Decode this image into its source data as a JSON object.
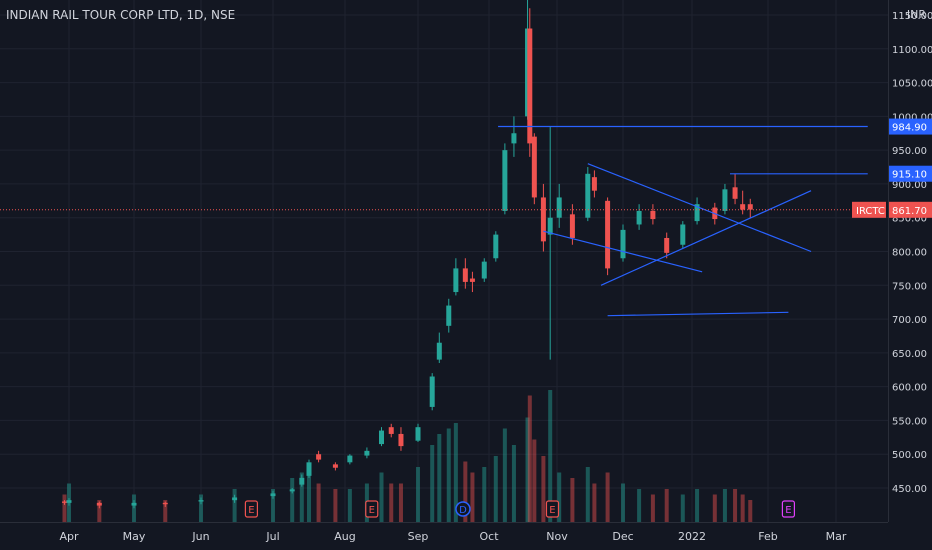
{
  "header": {
    "symbol_title": "INDIAN RAIL TOUR CORP LTD, 1D, NSE",
    "currency": "INR"
  },
  "colors": {
    "background": "#131722",
    "up": "#26a69a",
    "down": "#ef5350",
    "trendline": "#2962ff",
    "axis_text": "#d1d4dc"
  },
  "chart_data": {
    "type": "candlestick",
    "ylim": [
      400,
      1160
    ],
    "y_ticks": [
      "450.00",
      "500.00",
      "550.00",
      "600.00",
      "650.00",
      "700.00",
      "750.00",
      "800.00",
      "850.00",
      "900.00",
      "950.00",
      "1000.00",
      "1050.00",
      "1100.00",
      "1150.00"
    ],
    "x_ticks": [
      "Apr",
      "May",
      "Jun",
      "Jul",
      "Aug",
      "Sep",
      "Oct",
      "Nov",
      "Dec",
      "2022",
      "Feb",
      "Mar"
    ],
    "price_labels": [
      {
        "label": "984.90",
        "value": 984.9,
        "kind": "line"
      },
      {
        "label": "915.10",
        "value": 915.1,
        "kind": "line"
      },
      {
        "label": "861.70",
        "value": 861.7,
        "kind": "last",
        "ticker": "IRCTC"
      }
    ],
    "event_markers": [
      {
        "label": "E",
        "month": "Jun",
        "day": 22,
        "type": "earnings"
      },
      {
        "label": "E",
        "month": "Aug",
        "day": 12,
        "type": "earnings"
      },
      {
        "label": "D",
        "month": "Sep",
        "day": 20,
        "type": "dividend"
      },
      {
        "label": "E",
        "month": "Oct",
        "day": 29,
        "type": "earnings"
      },
      {
        "label": "E",
        "month": "Feb",
        "day": 10,
        "type": "earnings-upcoming"
      }
    ],
    "trendlines": [
      {
        "from": [
          "Oct",
          25,
          830
        ],
        "to": [
          "Jan",
          5,
          770
        ]
      },
      {
        "from": [
          "Nov",
          15,
          930
        ],
        "to": [
          "Feb",
          20,
          800
        ]
      },
      {
        "from": [
          "Nov",
          21,
          750
        ],
        "to": [
          "Feb",
          20,
          890
        ]
      },
      {
        "from": [
          "Nov",
          24,
          705
        ],
        "to": [
          "Feb",
          10,
          710
        ]
      },
      {
        "from": [
          "Oct",
          5,
          985
        ],
        "to": [
          "Mar",
          15,
          985
        ]
      },
      {
        "from": [
          "Jan",
          16,
          915
        ],
        "to": [
          "Mar",
          15,
          915
        ]
      }
    ],
    "candles": [
      {
        "month": "Mar",
        "day": 30,
        "o": 430,
        "h": 432,
        "l": 425,
        "c": 428,
        "v": 0.5
      },
      {
        "month": "Apr",
        "day": 1,
        "o": 428,
        "h": 435,
        "l": 424,
        "c": 432,
        "v": 0.7
      },
      {
        "month": "Apr",
        "day": 15,
        "o": 428,
        "h": 430,
        "l": 420,
        "c": 424,
        "v": 0.4
      },
      {
        "month": "May",
        "day": 1,
        "o": 424,
        "h": 432,
        "l": 420,
        "c": 428,
        "v": 0.5
      },
      {
        "month": "May",
        "day": 15,
        "o": 428,
        "h": 430,
        "l": 422,
        "c": 426,
        "v": 0.4
      },
      {
        "month": "Jun",
        "day": 1,
        "o": 430,
        "h": 436,
        "l": 426,
        "c": 432,
        "v": 0.5
      },
      {
        "month": "Jun",
        "day": 15,
        "o": 432,
        "h": 440,
        "l": 428,
        "c": 436,
        "v": 0.6
      },
      {
        "month": "Jul",
        "day": 1,
        "o": 438,
        "h": 446,
        "l": 434,
        "c": 442,
        "v": 0.6
      },
      {
        "month": "Jul",
        "day": 9,
        "o": 445,
        "h": 450,
        "l": 442,
        "c": 448,
        "v": 0.8
      },
      {
        "month": "Jul",
        "day": 13,
        "o": 455,
        "h": 470,
        "l": 452,
        "c": 465,
        "v": 0.9
      },
      {
        "month": "Jul",
        "day": 16,
        "o": 468,
        "h": 492,
        "l": 465,
        "c": 488,
        "v": 1.0
      },
      {
        "month": "Jul",
        "day": 20,
        "o": 500,
        "h": 505,
        "l": 488,
        "c": 492,
        "v": 0.7
      },
      {
        "month": "Jul",
        "day": 27,
        "o": 485,
        "h": 488,
        "l": 476,
        "c": 480,
        "v": 0.6
      },
      {
        "month": "Aug",
        "day": 3,
        "o": 488,
        "h": 500,
        "l": 485,
        "c": 498,
        "v": 0.6
      },
      {
        "month": "Aug",
        "day": 10,
        "o": 498,
        "h": 510,
        "l": 494,
        "c": 505,
        "v": 0.7
      },
      {
        "month": "Aug",
        "day": 16,
        "o": 515,
        "h": 540,
        "l": 512,
        "c": 535,
        "v": 0.9
      },
      {
        "month": "Aug",
        "day": 20,
        "o": 540,
        "h": 545,
        "l": 525,
        "c": 530,
        "v": 0.7
      },
      {
        "month": "Aug",
        "day": 24,
        "o": 530,
        "h": 540,
        "l": 505,
        "c": 512,
        "v": 0.7
      },
      {
        "month": "Sep",
        "day": 1,
        "o": 520,
        "h": 545,
        "l": 518,
        "c": 540,
        "v": 1.0
      },
      {
        "month": "Sep",
        "day": 7,
        "o": 570,
        "h": 620,
        "l": 565,
        "c": 615,
        "v": 1.4
      },
      {
        "month": "Sep",
        "day": 10,
        "o": 640,
        "h": 680,
        "l": 635,
        "c": 665,
        "v": 1.6
      },
      {
        "month": "Sep",
        "day": 14,
        "o": 690,
        "h": 730,
        "l": 680,
        "c": 720,
        "v": 1.7
      },
      {
        "month": "Sep",
        "day": 17,
        "o": 740,
        "h": 790,
        "l": 735,
        "c": 775,
        "v": 1.8
      },
      {
        "month": "Sep",
        "day": 21,
        "o": 775,
        "h": 790,
        "l": 745,
        "c": 755,
        "v": 1.1
      },
      {
        "month": "Sep",
        "day": 24,
        "o": 760,
        "h": 770,
        "l": 740,
        "c": 755,
        "v": 0.9
      },
      {
        "month": "Sep",
        "day": 29,
        "o": 760,
        "h": 790,
        "l": 755,
        "c": 785,
        "v": 1.0
      },
      {
        "month": "Oct",
        "day": 4,
        "o": 790,
        "h": 830,
        "l": 785,
        "c": 825,
        "v": 1.2
      },
      {
        "month": "Oct",
        "day": 8,
        "o": 860,
        "h": 960,
        "l": 855,
        "c": 950,
        "v": 1.7
      },
      {
        "month": "Oct",
        "day": 12,
        "o": 960,
        "h": 1000,
        "l": 940,
        "c": 975,
        "v": 1.4
      },
      {
        "month": "Oct",
        "day": 18,
        "o": 1000,
        "h": 1180,
        "l": 995,
        "c": 1130,
        "v": 1.9
      },
      {
        "month": "Oct",
        "day": 19,
        "o": 1130,
        "h": 1160,
        "l": 940,
        "c": 960,
        "v": 2.3
      },
      {
        "month": "Oct",
        "day": 21,
        "o": 970,
        "h": 975,
        "l": 870,
        "c": 880,
        "v": 1.5
      },
      {
        "month": "Oct",
        "day": 25,
        "o": 880,
        "h": 900,
        "l": 800,
        "c": 815,
        "v": 1.2
      },
      {
        "month": "Oct",
        "day": 28,
        "o": 825,
        "h": 985,
        "l": 640,
        "c": 850,
        "v": 2.4
      },
      {
        "month": "Nov",
        "day": 2,
        "o": 850,
        "h": 900,
        "l": 835,
        "c": 880,
        "v": 0.9
      },
      {
        "month": "Nov",
        "day": 8,
        "o": 855,
        "h": 870,
        "l": 810,
        "c": 820,
        "v": 0.8
      },
      {
        "month": "Nov",
        "day": 15,
        "o": 850,
        "h": 925,
        "l": 845,
        "c": 915,
        "v": 1.0
      },
      {
        "month": "Nov",
        "day": 18,
        "o": 910,
        "h": 920,
        "l": 880,
        "c": 890,
        "v": 0.7
      },
      {
        "month": "Nov",
        "day": 24,
        "o": 875,
        "h": 880,
        "l": 765,
        "c": 775,
        "v": 0.9
      },
      {
        "month": "Dec",
        "day": 1,
        "o": 790,
        "h": 840,
        "l": 785,
        "c": 832,
        "v": 0.7
      },
      {
        "month": "Dec",
        "day": 8,
        "o": 840,
        "h": 870,
        "l": 832,
        "c": 860,
        "v": 0.6
      },
      {
        "month": "Dec",
        "day": 14,
        "o": 860,
        "h": 870,
        "l": 840,
        "c": 848,
        "v": 0.5
      },
      {
        "month": "Dec",
        "day": 20,
        "o": 820,
        "h": 828,
        "l": 790,
        "c": 798,
        "v": 0.6
      },
      {
        "month": "Dec",
        "day": 27,
        "o": 810,
        "h": 845,
        "l": 805,
        "c": 840,
        "v": 0.5
      },
      {
        "month": "Jan",
        "day": 3,
        "o": 845,
        "h": 880,
        "l": 840,
        "c": 870,
        "v": 0.6
      },
      {
        "month": "Jan",
        "day": 10,
        "o": 865,
        "h": 872,
        "l": 840,
        "c": 848,
        "v": 0.5
      },
      {
        "month": "Jan",
        "day": 14,
        "o": 860,
        "h": 900,
        "l": 855,
        "c": 892,
        "v": 0.6
      },
      {
        "month": "Jan",
        "day": 18,
        "o": 895,
        "h": 915,
        "l": 870,
        "c": 878,
        "v": 0.6
      },
      {
        "month": "Jan",
        "day": 21,
        "o": 870,
        "h": 890,
        "l": 855,
        "c": 862,
        "v": 0.5
      },
      {
        "month": "Jan",
        "day": 24,
        "o": 870,
        "h": 878,
        "l": 850,
        "c": 862,
        "v": 0.4
      }
    ]
  }
}
